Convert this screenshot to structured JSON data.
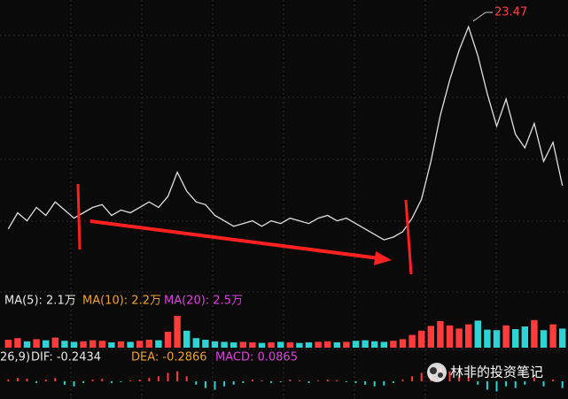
{
  "chart_data": {
    "type": "line",
    "peak_label": "23.47",
    "values": [
      16.0,
      16.6,
      16.3,
      16.8,
      16.5,
      17.0,
      16.7,
      16.4,
      16.6,
      16.8,
      16.9,
      16.5,
      16.7,
      16.6,
      16.8,
      17.0,
      16.8,
      17.2,
      18.1,
      17.4,
      17.0,
      16.9,
      16.5,
      16.3,
      16.1,
      16.2,
      16.3,
      16.1,
      16.3,
      16.2,
      16.4,
      16.3,
      16.2,
      16.4,
      16.5,
      16.3,
      16.4,
      16.2,
      16.0,
      15.8,
      15.6,
      15.7,
      15.9,
      16.4,
      17.1,
      18.5,
      20.2,
      21.5,
      22.6,
      23.47,
      22.4,
      21.0,
      19.8,
      20.8,
      19.5,
      19.0,
      19.9,
      18.5,
      19.2,
      17.6
    ],
    "ylim": [
      14,
      24.2
    ],
    "up_color": "#ff3b3b",
    "down_color": "#2fd3d3",
    "volume": {
      "legend": [
        "MA(5): 2.1万",
        "MA(10): 2.2万",
        "MA(20): 2.5万"
      ],
      "legend_colors": [
        "#e8e8e8",
        "#f0a030",
        "#e040e0"
      ],
      "values": [
        1.5,
        1.8,
        1.2,
        1.6,
        1.4,
        1.9,
        1.3,
        1.1,
        1.2,
        1.4,
        1.3,
        1.0,
        1.2,
        1.1,
        1.3,
        1.5,
        1.4,
        3.0,
        6.0,
        3.2,
        1.8,
        1.5,
        1.2,
        1.1,
        1.0,
        1.1,
        1.0,
        0.9,
        1.0,
        1.1,
        1.0,
        0.9,
        1.0,
        1.1,
        1.2,
        1.0,
        1.1,
        1.3,
        1.4,
        1.2,
        1.1,
        1.3,
        1.6,
        2.4,
        3.2,
        4.1,
        5.0,
        4.2,
        3.6,
        4.4,
        5.1,
        3.4,
        3.3,
        4.2,
        3.5,
        4.0,
        5.2,
        3.3,
        4.4,
        3.6
      ],
      "ylim": [
        0,
        8
      ]
    },
    "macd": {
      "legend": [
        "26,9)",
        "DIF: -0.2434",
        "DEA: -0.2866",
        "MACD: 0.0865"
      ],
      "legend_colors": [
        "#e8e8e8",
        "#e8e8e8",
        "#f0a030",
        "#e040e0"
      ],
      "values": [
        0.1,
        0.2,
        0.15,
        -0.1,
        0.1,
        0.2,
        -0.2,
        -0.3,
        -0.1,
        0.1,
        0.15,
        -0.1,
        -0.05,
        0.05,
        0.1,
        0.2,
        0.3,
        0.5,
        0.6,
        0.3,
        -0.2,
        -0.4,
        -0.5,
        -0.3,
        -0.2,
        -0.1,
        0.1,
        0.05,
        -0.1,
        -0.05,
        0.1,
        0.05,
        -0.1,
        0.05,
        0.1,
        0.05,
        -0.05,
        -0.1,
        -0.2,
        -0.3,
        -0.25,
        -0.1,
        0.1,
        0.3,
        0.5,
        0.7,
        0.8,
        0.6,
        0.4,
        0.3,
        -0.2,
        -0.5,
        -0.6,
        -0.3,
        -0.4,
        -0.2,
        0.2,
        -0.3,
        0.1,
        -0.4
      ],
      "ylim": [
        -1,
        1
      ]
    },
    "watermark": "林非的投资笔记"
  }
}
